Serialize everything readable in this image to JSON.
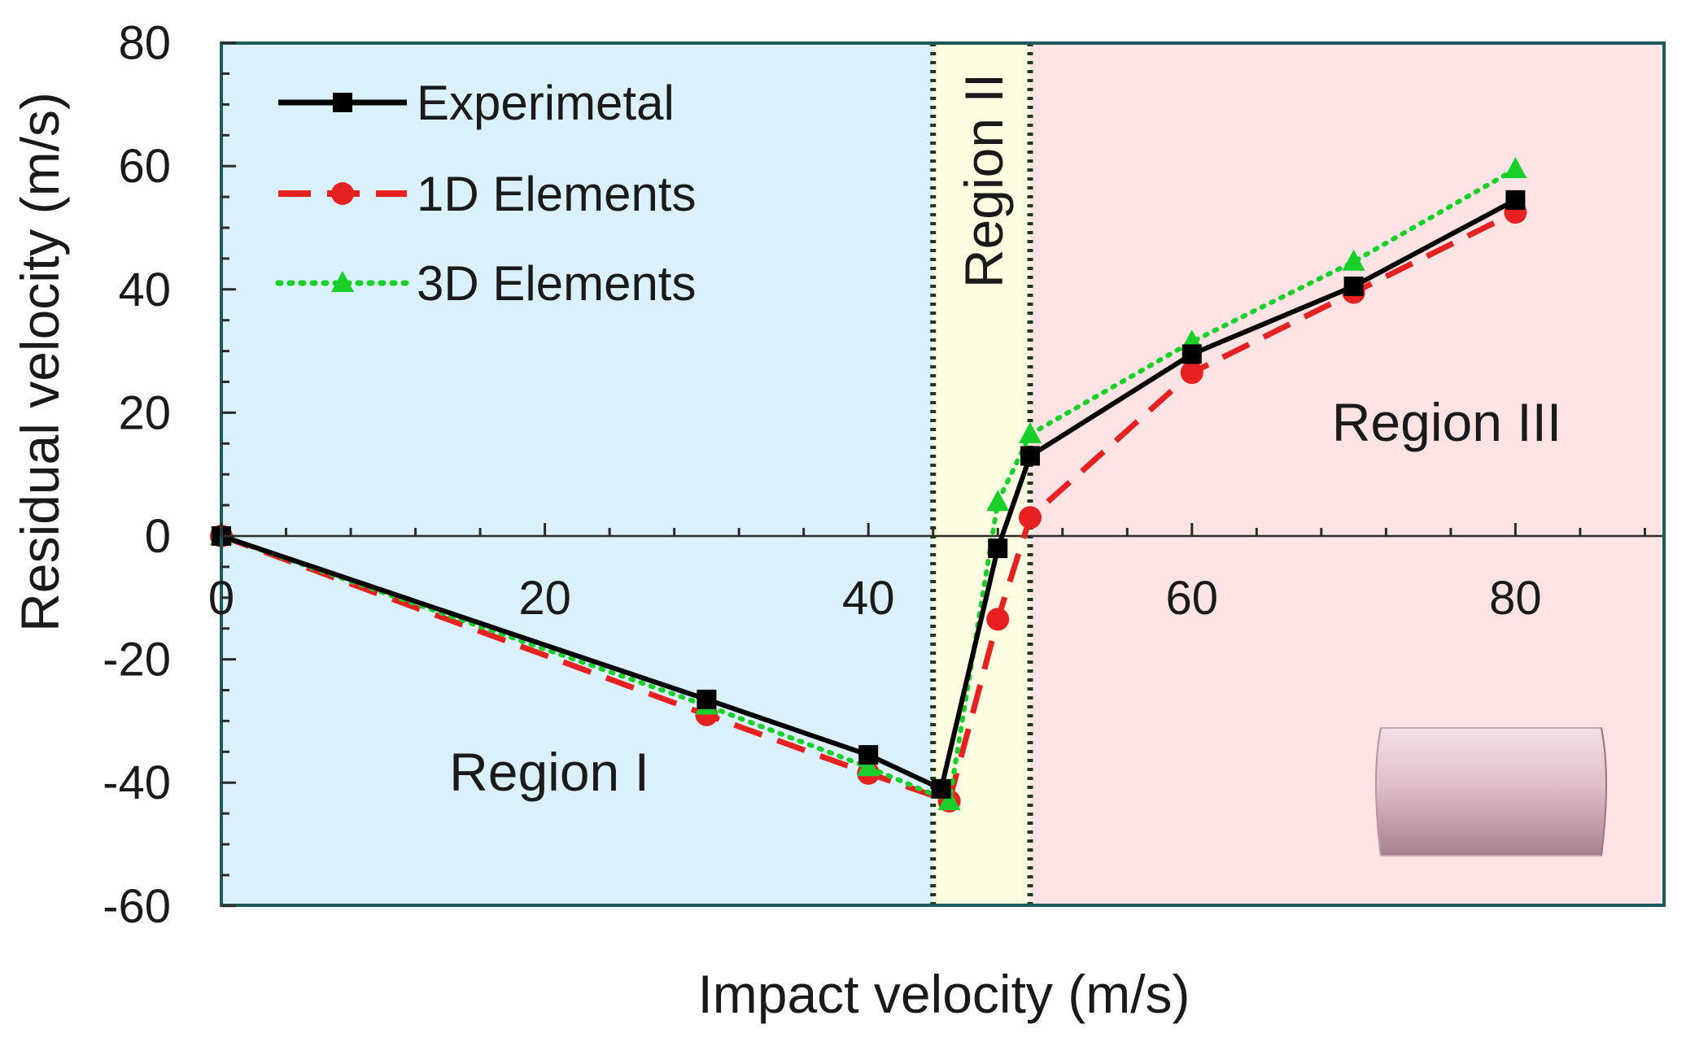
{
  "chart_data": {
    "type": "line",
    "title": "",
    "xlabel": "Impact velocity (m/s)",
    "ylabel": "Residual velocity (m/s)",
    "xlim": [
      0,
      89
    ],
    "ylim": [
      -60,
      80
    ],
    "xticks": [
      0,
      20,
      40,
      60,
      80
    ],
    "yticks": [
      -60,
      -40,
      -20,
      0,
      20,
      40,
      60,
      80
    ],
    "regions": [
      {
        "name": "Region I",
        "from": 0,
        "to": 44,
        "color": "#daf0fb"
      },
      {
        "name": "Region II",
        "from": 44,
        "to": 50,
        "color": "#fdfde2"
      },
      {
        "name": "Region III",
        "from": 50,
        "to": 89,
        "color": "#fde3e3"
      }
    ],
    "boundaries": [
      44,
      50
    ],
    "series": [
      {
        "name": "Experimetal",
        "color": "#000000",
        "line": "solid",
        "marker": "square",
        "x": [
          0,
          30,
          40,
          44.5,
          48,
          50,
          60,
          70,
          80
        ],
        "y": [
          0,
          -26.5,
          -35.5,
          -41,
          -2,
          13,
          29.5,
          40.5,
          54.5
        ]
      },
      {
        "name": "1D Elements",
        "color": "#e52121",
        "line": "dashed",
        "marker": "circle",
        "x": [
          0,
          30,
          40,
          45,
          48,
          50,
          60,
          70,
          80
        ],
        "y": [
          0,
          -29,
          -38.5,
          -43,
          -13.5,
          3,
          26.5,
          39.5,
          52.5
        ]
      },
      {
        "name": "3D Elements",
        "color": "#19d02a",
        "line": "dotted",
        "marker": "triangle",
        "x": [
          0,
          30,
          40,
          45,
          48,
          50,
          60,
          70,
          80
        ],
        "y": [
          0,
          -27.5,
          -37.5,
          -43,
          5.5,
          16.5,
          31.5,
          44.5,
          59.5
        ]
      }
    ]
  }
}
